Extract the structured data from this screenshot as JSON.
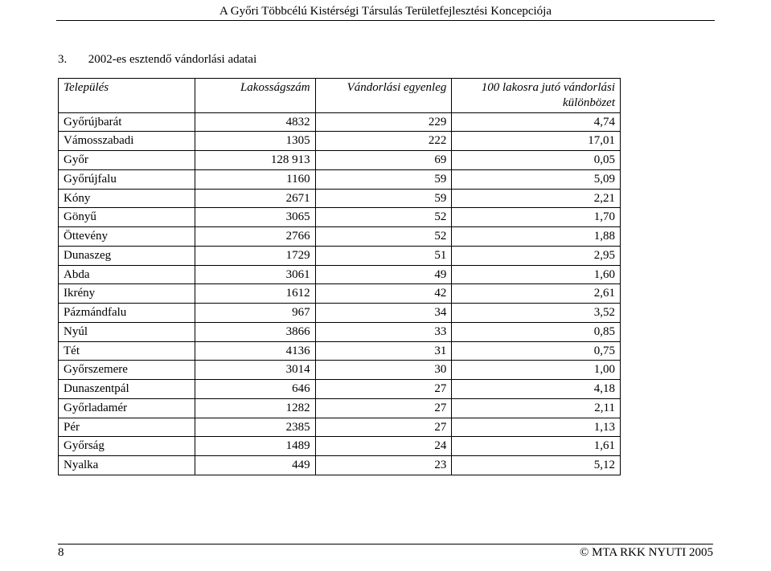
{
  "header": {
    "running_title": "A Győri Többcélú Kistérségi Társulás Területfejlesztési Koncepciója"
  },
  "section": {
    "number": "3.",
    "title": "2002-es esztendő vándorlási adatai"
  },
  "table": {
    "columns": {
      "c1": "Település",
      "c2": "Lakosságszám",
      "c3": "Vándorlási egyenleg",
      "c4_line1": "100 lakosra jutó vándorlási",
      "c4_line2": "különbözet"
    },
    "rows": [
      {
        "name": "Győrújbarát",
        "pop": "4832",
        "bal": "229",
        "per100": "4,74"
      },
      {
        "name": "Vámosszabadi",
        "pop": "1305",
        "bal": "222",
        "per100": "17,01"
      },
      {
        "name": "Győr",
        "pop": "128 913",
        "bal": "69",
        "per100": "0,05"
      },
      {
        "name": "Győrújfalu",
        "pop": "1160",
        "bal": "59",
        "per100": "5,09"
      },
      {
        "name": "Kóny",
        "pop": "2671",
        "bal": "59",
        "per100": "2,21"
      },
      {
        "name": "Gönyű",
        "pop": "3065",
        "bal": "52",
        "per100": "1,70"
      },
      {
        "name": "Öttevény",
        "pop": "2766",
        "bal": "52",
        "per100": "1,88"
      },
      {
        "name": "Dunaszeg",
        "pop": "1729",
        "bal": "51",
        "per100": "2,95"
      },
      {
        "name": "Abda",
        "pop": "3061",
        "bal": "49",
        "per100": "1,60"
      },
      {
        "name": "Ikrény",
        "pop": "1612",
        "bal": "42",
        "per100": "2,61"
      },
      {
        "name": "Pázmándfalu",
        "pop": "967",
        "bal": "34",
        "per100": "3,52"
      },
      {
        "name": "Nyúl",
        "pop": "3866",
        "bal": "33",
        "per100": "0,85"
      },
      {
        "name": "Tét",
        "pop": "4136",
        "bal": "31",
        "per100": "0,75"
      },
      {
        "name": "Győrszemere",
        "pop": "3014",
        "bal": "30",
        "per100": "1,00"
      },
      {
        "name": "Dunaszentpál",
        "pop": "646",
        "bal": "27",
        "per100": "4,18"
      },
      {
        "name": "Győrladamér",
        "pop": "1282",
        "bal": "27",
        "per100": "2,11"
      },
      {
        "name": "Pér",
        "pop": "2385",
        "bal": "27",
        "per100": "1,13"
      },
      {
        "name": "Győrság",
        "pop": "1489",
        "bal": "24",
        "per100": "1,61"
      },
      {
        "name": "Nyalka",
        "pop": "449",
        "bal": "23",
        "per100": "5,12"
      }
    ],
    "col_widths": {
      "c1": "170px",
      "c2": "150px",
      "c3": "170px",
      "c4": "210px"
    }
  },
  "footer": {
    "page_number": "8",
    "copyright": "© MTA RKK NYUTI 2005"
  }
}
